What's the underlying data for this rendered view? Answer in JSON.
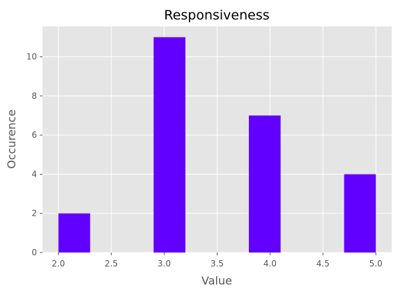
{
  "chart_data": {
    "type": "bar",
    "title": "Responsiveness",
    "xlabel": "Value",
    "ylabel": "Occurence",
    "bins": [
      {
        "start": 2.0,
        "end": 2.3,
        "count": 2
      },
      {
        "start": 2.3,
        "end": 2.6,
        "count": 0
      },
      {
        "start": 2.6,
        "end": 2.9,
        "count": 0
      },
      {
        "start": 2.9,
        "end": 3.2,
        "count": 11
      },
      {
        "start": 3.2,
        "end": 3.5,
        "count": 0
      },
      {
        "start": 3.5,
        "end": 3.8,
        "count": 0
      },
      {
        "start": 3.8,
        "end": 4.1,
        "count": 7
      },
      {
        "start": 4.1,
        "end": 4.4,
        "count": 0
      },
      {
        "start": 4.4,
        "end": 4.7,
        "count": 0
      },
      {
        "start": 4.7,
        "end": 5.0,
        "count": 4
      }
    ],
    "xlim": [
      1.85,
      5.15
    ],
    "ylim": [
      0,
      11.55
    ],
    "xticks": [
      "2.0",
      "2.5",
      "3.0",
      "3.5",
      "4.0",
      "4.5",
      "5.0"
    ],
    "yticks": [
      "0",
      "2",
      "4",
      "6",
      "8",
      "10"
    ],
    "grid": true,
    "colors": {
      "bar": "#6200ff",
      "plot_background": "#e5e5e5",
      "grid": "#ffffff"
    }
  }
}
